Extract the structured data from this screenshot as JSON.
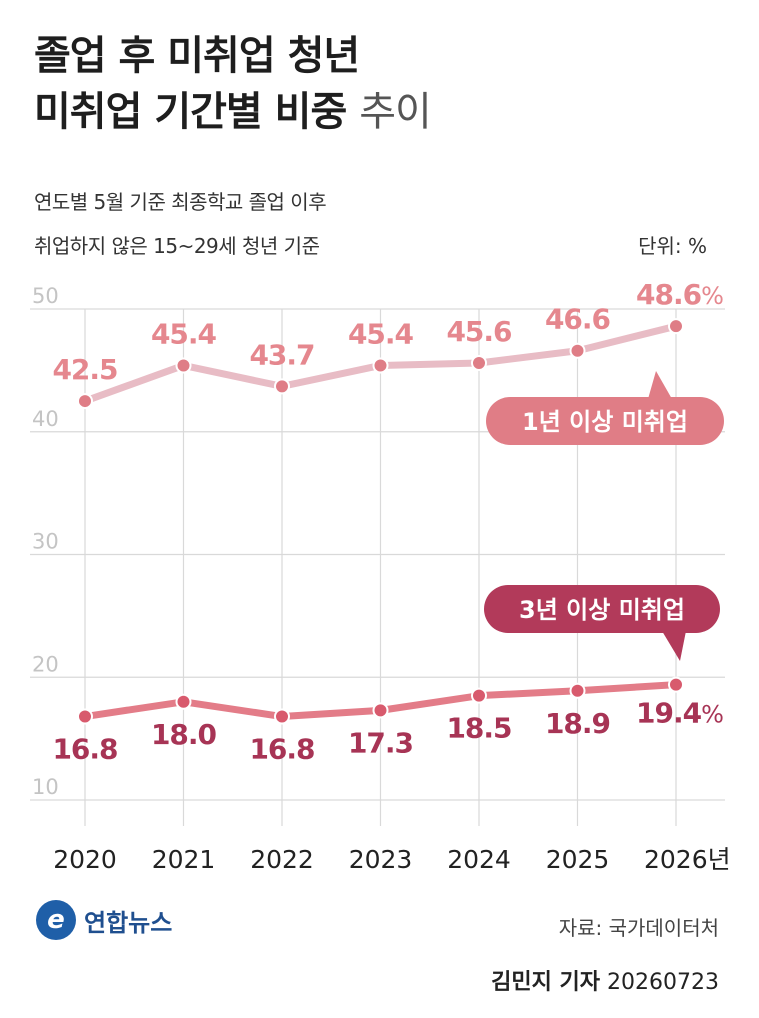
{
  "title": {
    "line1": "졸업 후 미취업 청년",
    "line2_bold": "미취업 기간별 비중",
    "line2_light": "추이"
  },
  "subtitle": {
    "line1": "연도별 5월 기준 최종학교 졸업 이후",
    "line2": "취업하지 않은 15~29세 청년 기준"
  },
  "unit_label": "단위: %",
  "chart_data": {
    "type": "line",
    "x": [
      "2020",
      "2021",
      "2022",
      "2023",
      "2024",
      "2025",
      "2026"
    ],
    "x_tick_labels": [
      "2020",
      "2021",
      "2022",
      "2023",
      "2024",
      "2025",
      "2026년"
    ],
    "y_ticks": [
      "50",
      "40",
      "30",
      "20",
      "10"
    ],
    "ylim": [
      10,
      50
    ],
    "grid": true,
    "series": [
      {
        "name": "1년 이상 미취업",
        "values": [
          42.5,
          45.4,
          43.7,
          45.4,
          45.6,
          46.6,
          48.6
        ],
        "labels": [
          "42.5",
          "45.4",
          "43.7",
          "45.4",
          "45.6",
          "46.6",
          "48.6"
        ],
        "last_label_suffix": "%",
        "line_color": "#e8bcc5",
        "point_color": "#df7d86",
        "label_color": "#e5878e",
        "badge_color": "#e07d86"
      },
      {
        "name": "3년 이상 미취업",
        "values": [
          16.8,
          18.0,
          16.8,
          17.3,
          18.5,
          18.9,
          19.4
        ],
        "labels": [
          "16.8",
          "18.0",
          "16.8",
          "17.3",
          "18.5",
          "18.9",
          "19.4"
        ],
        "last_label_suffix": "%",
        "line_color": "#e37c88",
        "point_color": "#d85a6d",
        "label_color": "#a73455",
        "badge_color": "#b23a5a"
      }
    ]
  },
  "footer": {
    "logo_mark": "e",
    "logo_text": "연합뉴스",
    "source": "자료: 국가데이터처",
    "reporter": "김민지 기자",
    "date": "20260723"
  }
}
